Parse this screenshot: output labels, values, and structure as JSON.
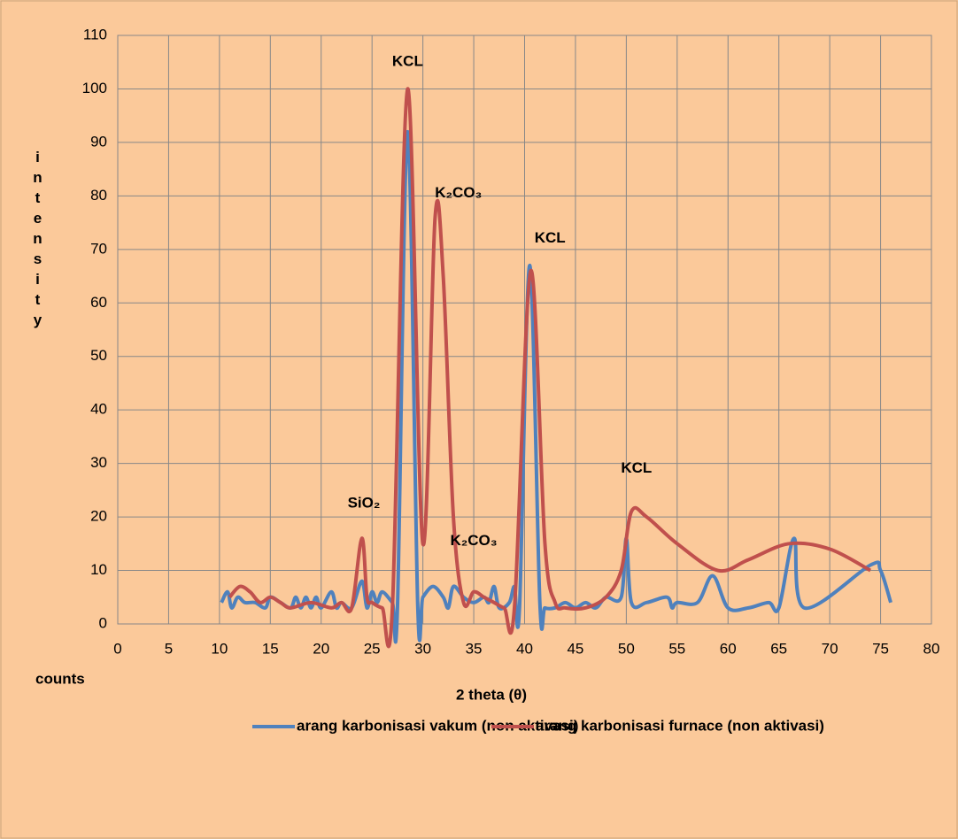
{
  "chart_data": {
    "type": "line",
    "x_label": "2 theta (θ)",
    "y_label": "intensity",
    "y_unit": "counts",
    "xlim": [
      0,
      80
    ],
    "xticks": [
      0,
      5,
      10,
      15,
      20,
      25,
      30,
      35,
      40,
      45,
      50,
      55,
      60,
      65,
      70,
      75,
      80
    ],
    "ylim": [
      0,
      110
    ],
    "yticks": [
      0,
      10,
      20,
      30,
      40,
      50,
      60,
      70,
      80,
      90,
      100,
      110
    ],
    "grid": true,
    "legend": "bottom",
    "annotations": [
      "KCL",
      "K₂CO₃",
      "KCL",
      "SiO₂",
      "K₂CO₃",
      "KCL"
    ],
    "series": [
      {
        "name": "arang karbonisasi vakum (non aktivasi)",
        "color": "#4f81bd",
        "x": [
          10.2,
          10.8,
          11.2,
          11.8,
          12.5,
          13.5,
          14.5,
          15,
          16,
          17,
          17.5,
          18,
          18.5,
          19,
          19.5,
          20,
          21,
          21.5,
          22,
          23,
          24,
          24.5,
          25,
          25.5,
          26,
          27,
          27.5,
          28.5,
          29.5,
          30,
          31,
          32,
          32.5,
          33,
          34,
          35,
          36,
          36.5,
          37,
          37.5,
          38.5,
          39,
          39.5,
          40.5,
          41.5,
          42,
          43,
          44,
          45,
          46,
          47,
          48,
          49.5,
          50,
          50.5,
          52,
          54,
          54.5,
          55,
          57,
          58.5,
          60,
          62,
          64,
          65,
          66.5,
          67.5,
          74,
          75,
          76
        ],
        "values": [
          4,
          6,
          3,
          5,
          4,
          4,
          3,
          5,
          4,
          3,
          5,
          3,
          5,
          3,
          5,
          3,
          6,
          3,
          4,
          3,
          8,
          3,
          6,
          4,
          6,
          4,
          3,
          92,
          3,
          5,
          7,
          5,
          3,
          7,
          5,
          4,
          5,
          4,
          7,
          3,
          4,
          7,
          3,
          67,
          4,
          3,
          3,
          4,
          3,
          4,
          3,
          5,
          5,
          16,
          4,
          4,
          5,
          3,
          4,
          4,
          9,
          3,
          3,
          4,
          3,
          16,
          3,
          11,
          10,
          4
        ]
      },
      {
        "name": "arang karbonisasi furnace (non aktivasi)",
        "color": "#c0504d",
        "x": [
          11,
          12,
          13,
          14,
          15,
          16,
          17,
          19,
          21,
          22,
          23,
          24,
          24.5,
          25,
          26,
          27,
          28.5,
          30,
          31.2,
          32,
          33,
          34,
          35,
          36,
          37,
          38,
          39,
          40.6,
          42,
          43,
          44,
          46,
          48,
          49.5,
          50.5,
          52,
          55,
          59,
          62,
          66,
          70,
          74
        ],
        "values": [
          5,
          7,
          6,
          4,
          5,
          4,
          3,
          4,
          3,
          4,
          3,
          16,
          5,
          4,
          3,
          3,
          100,
          15,
          76,
          65,
          20,
          4,
          6,
          5,
          4,
          3,
          3,
          66,
          15,
          4,
          3,
          3,
          5,
          10,
          21,
          20,
          15,
          10,
          12,
          15,
          14,
          10
        ]
      }
    ]
  }
}
